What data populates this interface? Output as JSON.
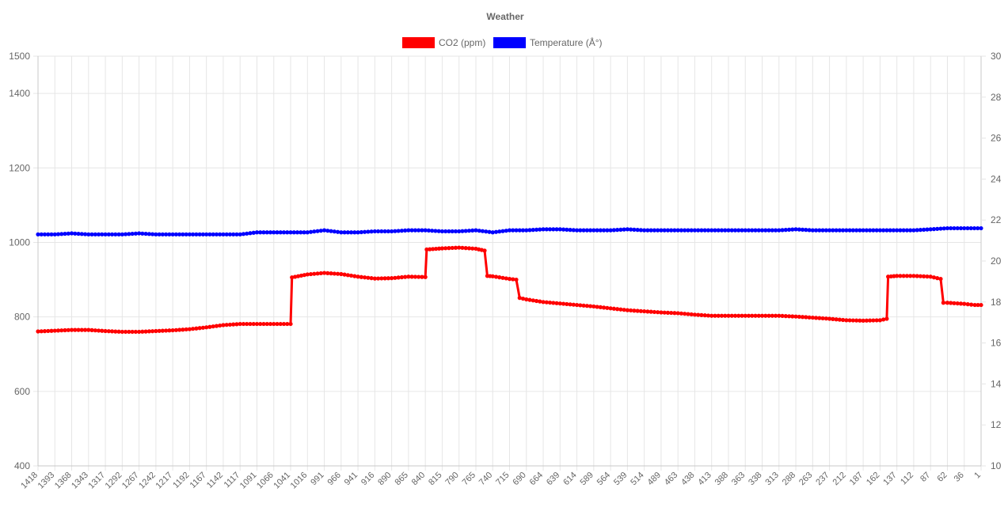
{
  "chart_data": {
    "type": "line",
    "title": "Weather",
    "legend_position": "top",
    "grid": true,
    "x_labels": [
      "1418",
      "1393",
      "1368",
      "1343",
      "1317",
      "1292",
      "1267",
      "1242",
      "1217",
      "1192",
      "1167",
      "1142",
      "1117",
      "1091",
      "1066",
      "1041",
      "1016",
      "991",
      "966",
      "941",
      "916",
      "890",
      "865",
      "840",
      "815",
      "790",
      "765",
      "740",
      "715",
      "690",
      "664",
      "639",
      "614",
      "589",
      "564",
      "539",
      "514",
      "489",
      "463",
      "438",
      "413",
      "388",
      "363",
      "338",
      "313",
      "288",
      "263",
      "237",
      "212",
      "187",
      "162",
      "137",
      "112",
      "87",
      "62",
      "36",
      "1"
    ],
    "y_left": {
      "min": 400,
      "max": 1500,
      "ticks": [
        400,
        600,
        800,
        1000,
        1200,
        1400,
        1500
      ]
    },
    "y_right": {
      "min": 10,
      "max": 30,
      "ticks": [
        10,
        12,
        14,
        16,
        18,
        20,
        22,
        24,
        26,
        28,
        30
      ]
    },
    "series": [
      {
        "name": "CO2 (ppm)",
        "color": "#ff0000",
        "axis": "left",
        "points": [
          [
            1418,
            761
          ],
          [
            1393,
            763
          ],
          [
            1368,
            765
          ],
          [
            1343,
            765
          ],
          [
            1317,
            762
          ],
          [
            1292,
            760
          ],
          [
            1267,
            760
          ],
          [
            1242,
            762
          ],
          [
            1217,
            764
          ],
          [
            1192,
            767
          ],
          [
            1167,
            772
          ],
          [
            1142,
            778
          ],
          [
            1117,
            781
          ],
          [
            1091,
            781
          ],
          [
            1066,
            781
          ],
          [
            1041,
            781
          ],
          [
            1039,
            906
          ],
          [
            1016,
            914
          ],
          [
            991,
            918
          ],
          [
            966,
            915
          ],
          [
            941,
            908
          ],
          [
            916,
            903
          ],
          [
            890,
            904
          ],
          [
            865,
            908
          ],
          [
            840,
            907
          ],
          [
            838,
            981
          ],
          [
            815,
            984
          ],
          [
            790,
            986
          ],
          [
            765,
            983
          ],
          [
            752,
            978
          ],
          [
            748,
            910
          ],
          [
            740,
            909
          ],
          [
            715,
            902
          ],
          [
            705,
            900
          ],
          [
            700,
            851
          ],
          [
            690,
            847
          ],
          [
            664,
            840
          ],
          [
            639,
            836
          ],
          [
            614,
            832
          ],
          [
            589,
            828
          ],
          [
            564,
            823
          ],
          [
            539,
            818
          ],
          [
            514,
            815
          ],
          [
            489,
            812
          ],
          [
            463,
            810
          ],
          [
            438,
            806
          ],
          [
            413,
            803
          ],
          [
            388,
            803
          ],
          [
            363,
            803
          ],
          [
            338,
            803
          ],
          [
            313,
            803
          ],
          [
            288,
            801
          ],
          [
            263,
            798
          ],
          [
            237,
            795
          ],
          [
            212,
            791
          ],
          [
            187,
            790
          ],
          [
            162,
            791
          ],
          [
            152,
            795
          ],
          [
            150,
            908
          ],
          [
            137,
            910
          ],
          [
            112,
            910
          ],
          [
            87,
            908
          ],
          [
            72,
            902
          ],
          [
            68,
            838
          ],
          [
            62,
            838
          ],
          [
            36,
            835
          ],
          [
            14,
            832
          ],
          [
            1,
            832
          ]
        ]
      },
      {
        "name": "Temperature (Å°)",
        "color": "#0000ff",
        "axis": "right",
        "points": [
          [
            1418,
            21.3
          ],
          [
            1393,
            21.3
          ],
          [
            1368,
            21.35
          ],
          [
            1343,
            21.3
          ],
          [
            1317,
            21.3
          ],
          [
            1292,
            21.3
          ],
          [
            1267,
            21.35
          ],
          [
            1242,
            21.3
          ],
          [
            1217,
            21.3
          ],
          [
            1192,
            21.3
          ],
          [
            1167,
            21.3
          ],
          [
            1142,
            21.3
          ],
          [
            1117,
            21.3
          ],
          [
            1091,
            21.4
          ],
          [
            1066,
            21.4
          ],
          [
            1041,
            21.4
          ],
          [
            1016,
            21.4
          ],
          [
            991,
            21.5
          ],
          [
            966,
            21.4
          ],
          [
            941,
            21.4
          ],
          [
            916,
            21.45
          ],
          [
            890,
            21.45
          ],
          [
            865,
            21.5
          ],
          [
            840,
            21.5
          ],
          [
            815,
            21.45
          ],
          [
            790,
            21.45
          ],
          [
            765,
            21.5
          ],
          [
            740,
            21.4
          ],
          [
            715,
            21.5
          ],
          [
            690,
            21.5
          ],
          [
            664,
            21.55
          ],
          [
            639,
            21.55
          ],
          [
            614,
            21.5
          ],
          [
            589,
            21.5
          ],
          [
            564,
            21.5
          ],
          [
            539,
            21.55
          ],
          [
            514,
            21.5
          ],
          [
            489,
            21.5
          ],
          [
            463,
            21.5
          ],
          [
            438,
            21.5
          ],
          [
            413,
            21.5
          ],
          [
            388,
            21.5
          ],
          [
            363,
            21.5
          ],
          [
            338,
            21.5
          ],
          [
            313,
            21.5
          ],
          [
            288,
            21.55
          ],
          [
            263,
            21.5
          ],
          [
            237,
            21.5
          ],
          [
            212,
            21.5
          ],
          [
            187,
            21.5
          ],
          [
            162,
            21.5
          ],
          [
            137,
            21.5
          ],
          [
            112,
            21.5
          ],
          [
            87,
            21.55
          ],
          [
            62,
            21.6
          ],
          [
            36,
            21.6
          ],
          [
            1,
            21.6
          ]
        ]
      }
    ]
  }
}
